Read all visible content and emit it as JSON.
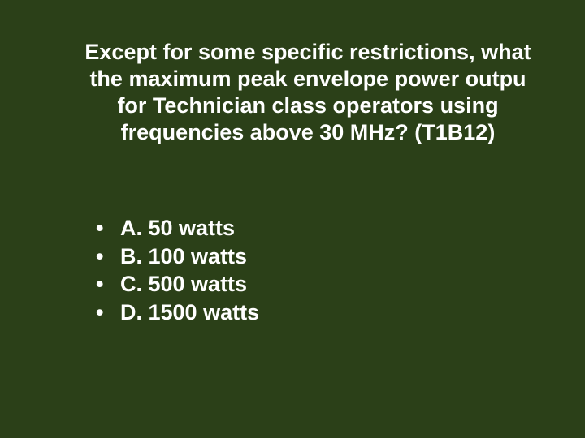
{
  "slide": {
    "background_color": "#2b4018",
    "text_color": "#ffffff",
    "font_family": "Verdana, Geneva, sans-serif",
    "question_fontsize": 27,
    "answer_fontsize": 27,
    "font_weight": "bold",
    "question": {
      "line1": "Except for some specific restrictions, what",
      "line2": "the maximum peak envelope power outpu",
      "line3": "for Technician class operators using",
      "line4": "frequencies above 30 MHz? (T1B12)"
    },
    "answers": [
      {
        "label": "A. 50 watts"
      },
      {
        "label": "B. 100 watts"
      },
      {
        "label": "C. 500 watts"
      },
      {
        "label": "D. 1500 watts"
      }
    ]
  }
}
